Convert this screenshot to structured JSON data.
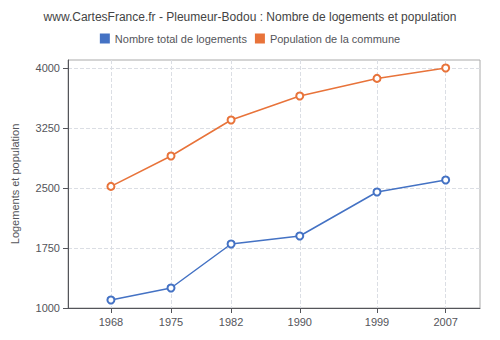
{
  "chart_data": {
    "type": "line",
    "title": "www.CartesFrance.fr - Pleumeur-Bodou : Nombre de logements et population",
    "ylabel": "Logements et population",
    "x": [
      1968,
      1975,
      1982,
      1990,
      1999,
      2007
    ],
    "series": [
      {
        "name": "Nombre total de logements",
        "color": "#4472c4",
        "marker": "circle",
        "values": [
          1100,
          1250,
          1800,
          1900,
          2450,
          2600
        ]
      },
      {
        "name": "Population de la commune",
        "color": "#e8733a",
        "marker": "circle",
        "values": [
          2520,
          2900,
          3350,
          3650,
          3870,
          4000
        ]
      }
    ],
    "xlim": [
      1963,
      2011
    ],
    "xticks": [
      1968,
      1975,
      1982,
      1990,
      1999,
      2007
    ],
    "ylim": [
      1000,
      4100
    ],
    "yticks": [
      1000,
      1750,
      2500,
      3250,
      4000
    ],
    "grid": true,
    "legend": "top"
  }
}
